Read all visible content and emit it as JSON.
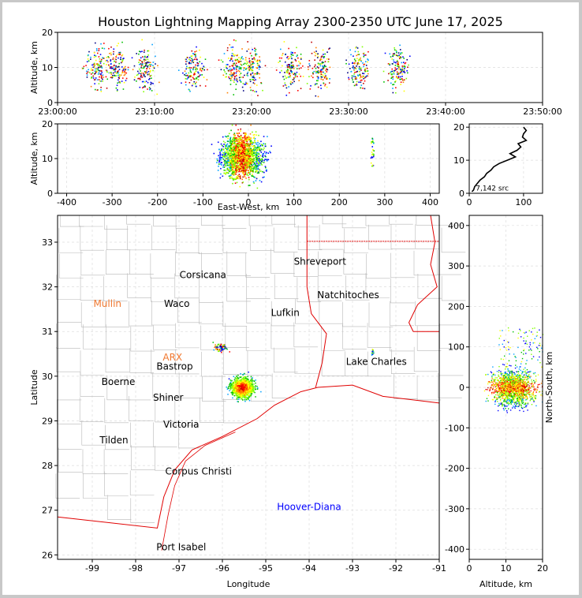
{
  "title": "Houston Lightning Mapping Array 2300-2350 UTC June 17, 2025",
  "colors": {
    "coast": "#e00000",
    "county": "#b8b8b8",
    "grid": "#dddddd",
    "state": "#e00000"
  },
  "chart_data": [
    {
      "panel": "time-altitude",
      "type": "scatter",
      "ylabel": "Altitude, km",
      "xlabel": "",
      "x_ticks": [
        "23:00:00",
        "23:10:00",
        "23:20:00",
        "23:30:00",
        "23:40:00",
        "23:50:00"
      ],
      "xlim_minutes": [
        0,
        50
      ],
      "ylim": [
        0,
        20
      ],
      "y_ticks": [
        0,
        10,
        20
      ],
      "source_clusters_minutes": [
        4,
        6,
        9,
        14,
        18,
        20,
        24,
        27,
        31,
        35
      ]
    },
    {
      "panel": "east-west-altitude",
      "type": "scatter",
      "xlabel": "East-West, km",
      "ylabel": "Altitude, km",
      "xlim": [
        -420,
        420
      ],
      "ylim": [
        0,
        20
      ],
      "x_ticks": [
        -400,
        -300,
        -200,
        -100,
        0,
        100,
        200,
        300,
        400
      ],
      "y_ticks": [
        0,
        10,
        20
      ]
    },
    {
      "panel": "altitude-histogram",
      "type": "line",
      "xlim": [
        0,
        135
      ],
      "ylim": [
        0,
        21
      ],
      "x_ticks": [
        0,
        100
      ],
      "y_ticks": [
        0,
        10,
        20
      ],
      "annotation": "7,142 src",
      "profile": [
        [
          5,
          0.5
        ],
        [
          8,
          1
        ],
        [
          10,
          2
        ],
        [
          15,
          3
        ],
        [
          20,
          4
        ],
        [
          28,
          5
        ],
        [
          32,
          6
        ],
        [
          40,
          7
        ],
        [
          45,
          8
        ],
        [
          55,
          9
        ],
        [
          70,
          10
        ],
        [
          85,
          11
        ],
        [
          75,
          12
        ],
        [
          88,
          13
        ],
        [
          95,
          14
        ],
        [
          90,
          15
        ],
        [
          105,
          16
        ],
        [
          98,
          17
        ],
        [
          100,
          18
        ],
        [
          105,
          19
        ],
        [
          100,
          20
        ]
      ]
    },
    {
      "panel": "plan-view-map",
      "type": "scatter",
      "xlabel": "Longitude",
      "ylabel": "Latitude",
      "xlim": [
        -99.8,
        -91
      ],
      "ylim": [
        25.9,
        33.6
      ],
      "x_ticks": [
        -99,
        -98,
        -97,
        -96,
        -95,
        -94,
        -93,
        -92,
        -91
      ],
      "y_ticks": [
        26,
        27,
        28,
        29,
        30,
        31,
        32,
        33
      ],
      "storm_center": [
        -95.55,
        29.75
      ],
      "cities": [
        {
          "name": "Shreveport",
          "lon": -93.75,
          "lat": 32.5,
          "color": "#000000"
        },
        {
          "name": "Corsicana",
          "lon": -96.45,
          "lat": 32.2,
          "color": "#000000"
        },
        {
          "name": "Natchitoches",
          "lon": -93.1,
          "lat": 31.75,
          "color": "#000000"
        },
        {
          "name": "Mullin",
          "lon": -98.65,
          "lat": 31.55,
          "color": "#f07830"
        },
        {
          "name": "Waco",
          "lon": -97.05,
          "lat": 31.55,
          "color": "#000000"
        },
        {
          "name": "Lufkin",
          "lon": -94.55,
          "lat": 31.35,
          "color": "#000000"
        },
        {
          "name": "ARX",
          "lon": -97.15,
          "lat": 30.35,
          "color": "#f07830"
        },
        {
          "name": "Bastrop",
          "lon": -97.1,
          "lat": 30.15,
          "color": "#000000"
        },
        {
          "name": "Lake Charles",
          "lon": -92.45,
          "lat": 30.25,
          "color": "#000000"
        },
        {
          "name": "Boerne",
          "lon": -98.4,
          "lat": 29.8,
          "color": "#000000"
        },
        {
          "name": "Shiner",
          "lon": -97.25,
          "lat": 29.45,
          "color": "#000000"
        },
        {
          "name": "Victoria",
          "lon": -96.95,
          "lat": 28.85,
          "color": "#000000"
        },
        {
          "name": "Tilden",
          "lon": -98.5,
          "lat": 28.5,
          "color": "#000000"
        },
        {
          "name": "Corpus Christi",
          "lon": -96.55,
          "lat": 27.8,
          "color": "#000000"
        },
        {
          "name": "Hoover-Diana",
          "lon": -94.0,
          "lat": 27.0,
          "color": "#0000ff"
        },
        {
          "name": "Port Isabel",
          "lon": -96.95,
          "lat": 26.1,
          "color": "#000000"
        }
      ]
    },
    {
      "panel": "altitude-north-south",
      "type": "scatter",
      "xlabel": "Altitude, km",
      "ylabel": "North-South, km",
      "xlim": [
        0,
        20
      ],
      "ylim": [
        -425,
        425
      ],
      "x_ticks": [
        0,
        10,
        20
      ],
      "y_ticks": [
        -400,
        -300,
        -200,
        -100,
        0,
        100,
        200,
        300,
        400
      ]
    }
  ]
}
